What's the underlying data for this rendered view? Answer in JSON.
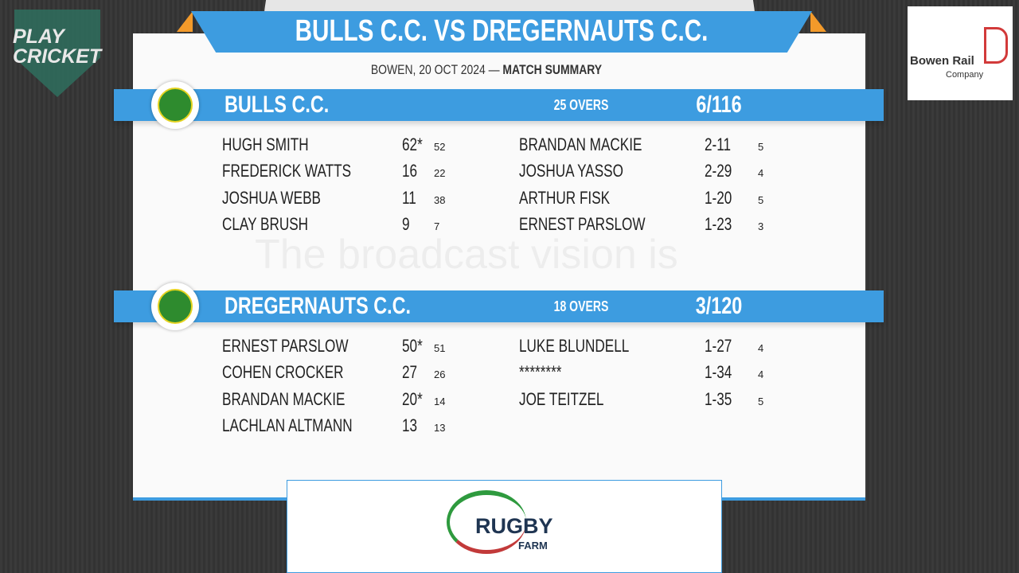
{
  "header": {
    "title": "BULLS C.C. VS DREGERNAUTS C.C.",
    "venue_date": "BOWEN, 20 OCT 2024 —",
    "label": "MATCH SUMMARY"
  },
  "innings": [
    {
      "team": "BULLS C.C.",
      "overs": "25 OVERS",
      "score": "6/116",
      "batters": [
        [
          "HUGH SMITH",
          "62*",
          "52"
        ],
        [
          "FREDERICK WATTS",
          "16",
          "22"
        ],
        [
          "JOSHUA WEBB",
          "11",
          "38"
        ],
        [
          "CLAY BRUSH",
          "9",
          "7"
        ]
      ],
      "bowlers": [
        [
          "BRANDAN MACKIE",
          "2-11",
          "5"
        ],
        [
          "JOSHUA YASSO",
          "2-29",
          "4"
        ],
        [
          "ARTHUR FISK",
          "1-20",
          "5"
        ],
        [
          "ERNEST PARSLOW",
          "1-23",
          "3"
        ]
      ]
    },
    {
      "team": "DREGERNAUTS C.C.",
      "overs": "18 OVERS",
      "score": "3/120",
      "batters": [
        [
          "ERNEST PARSLOW",
          "50*",
          "51"
        ],
        [
          "COHEN CROCKER",
          "27",
          "26"
        ],
        [
          "BRANDAN MACKIE",
          "20*",
          "14"
        ],
        [
          "LACHLAN ALTMANN",
          "13",
          "13"
        ]
      ],
      "bowlers": [
        [
          "LUKE BLUNDELL",
          "1-27",
          "4"
        ],
        [
          "********",
          "1-34",
          "4"
        ],
        [
          "JOE TEITZEL",
          "1-35",
          "5"
        ]
      ]
    }
  ],
  "watermark": "The broadcast vision is",
  "logos": {
    "play_cricket": [
      "PLAY",
      "CRICKET"
    ],
    "sponsor_top": [
      "Bowen Rail",
      "Company"
    ],
    "sponsor_bottom": [
      "RUGBY",
      "FARM"
    ]
  }
}
